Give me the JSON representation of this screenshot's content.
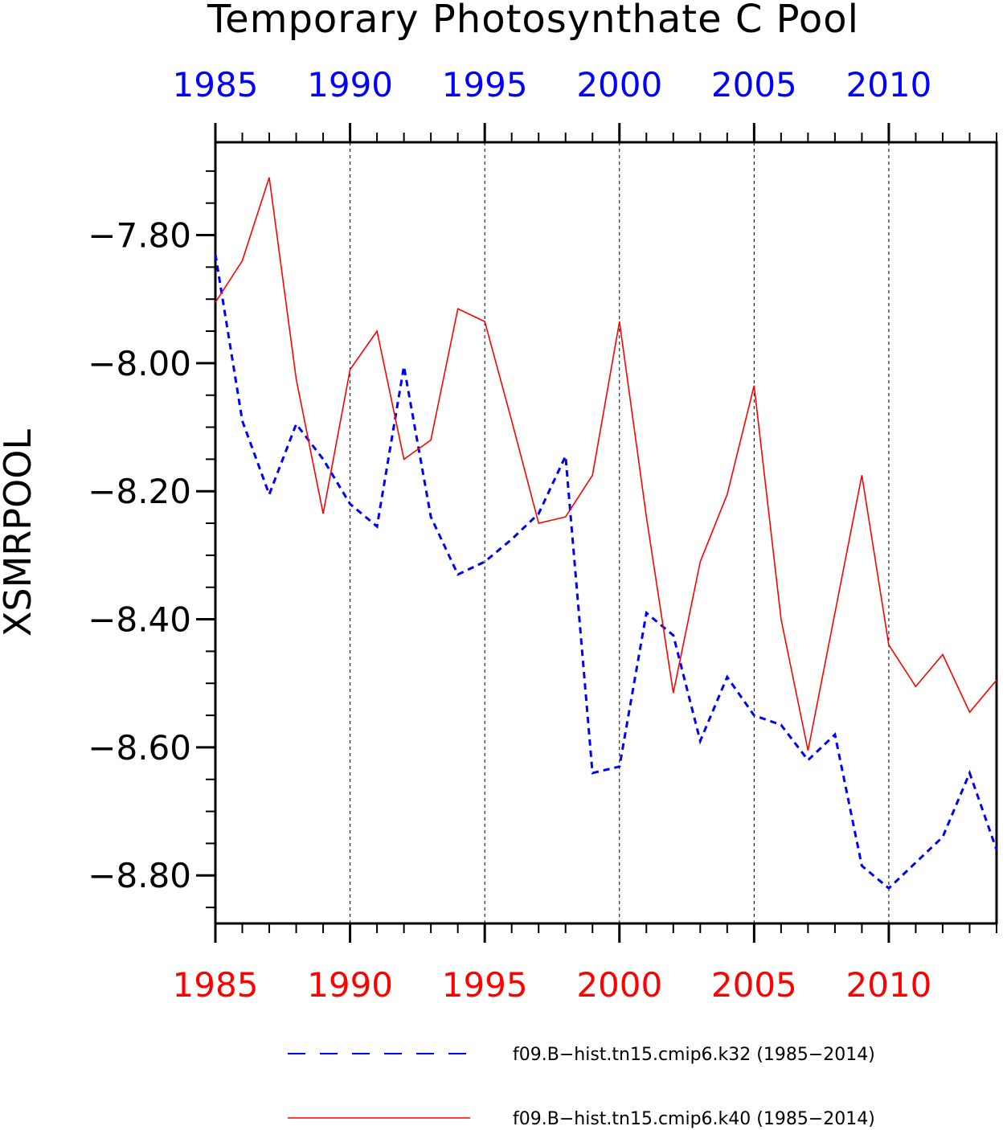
{
  "chart_data": {
    "type": "line",
    "title": "Temporary Photosynthate C Pool",
    "xlabel": "",
    "ylabel": "XSMRPOOL",
    "x": [
      1985,
      1986,
      1987,
      1988,
      1989,
      1990,
      1991,
      1992,
      1993,
      1994,
      1995,
      1996,
      1997,
      1998,
      1999,
      2000,
      2001,
      2002,
      2003,
      2004,
      2005,
      2006,
      2007,
      2008,
      2009,
      2010,
      2011,
      2012,
      2013,
      2014
    ],
    "xlim": [
      1985,
      2014
    ],
    "ylim": [
      -8.875,
      -7.655
    ],
    "x_ticks": [
      "1985",
      "1990",
      "1995",
      "2000",
      "2005",
      "2010"
    ],
    "y_ticks": [
      "-7.80",
      "-8.00",
      "-8.20",
      "-8.40",
      "-8.60",
      "-8.80"
    ],
    "grid": "vertical dashed at major x ticks",
    "legend_position": "bottom",
    "series": [
      {
        "name": "f09.B-hist.tn15.cmip6.k32 (1985-2014)",
        "color": "#0000ff",
        "style": "dashed",
        "values": [
          -7.83,
          -8.09,
          -8.205,
          -8.095,
          -8.15,
          -8.22,
          -8.255,
          -8.005,
          -8.24,
          -8.33,
          -8.31,
          -8.275,
          -8.235,
          -8.145,
          -8.64,
          -8.63,
          -8.39,
          -8.425,
          -8.59,
          -8.49,
          -8.55,
          -8.565,
          -8.62,
          -8.58,
          -8.785,
          -8.82,
          -8.78,
          -8.74,
          -8.64,
          -8.76
        ]
      },
      {
        "name": "f09.B-hist.tn15.cmip6.k40 (1985-2014)",
        "color": "#ff0000",
        "style": "solid",
        "values": [
          -7.905,
          -7.84,
          -7.71,
          -8.025,
          -8.235,
          -8.01,
          -7.95,
          -8.15,
          -8.12,
          -7.915,
          -7.935,
          -8.09,
          -8.25,
          -8.24,
          -8.175,
          -7.935,
          -8.24,
          -8.515,
          -8.31,
          -8.205,
          -8.035,
          -8.4,
          -8.605,
          -8.39,
          -8.175,
          -8.44,
          -8.505,
          -8.455,
          -8.545,
          -8.495
        ]
      }
    ]
  },
  "colors": {
    "top_axis_labels": "#0000ff",
    "bottom_axis_labels": "#ff0000",
    "axes": "#000000"
  }
}
